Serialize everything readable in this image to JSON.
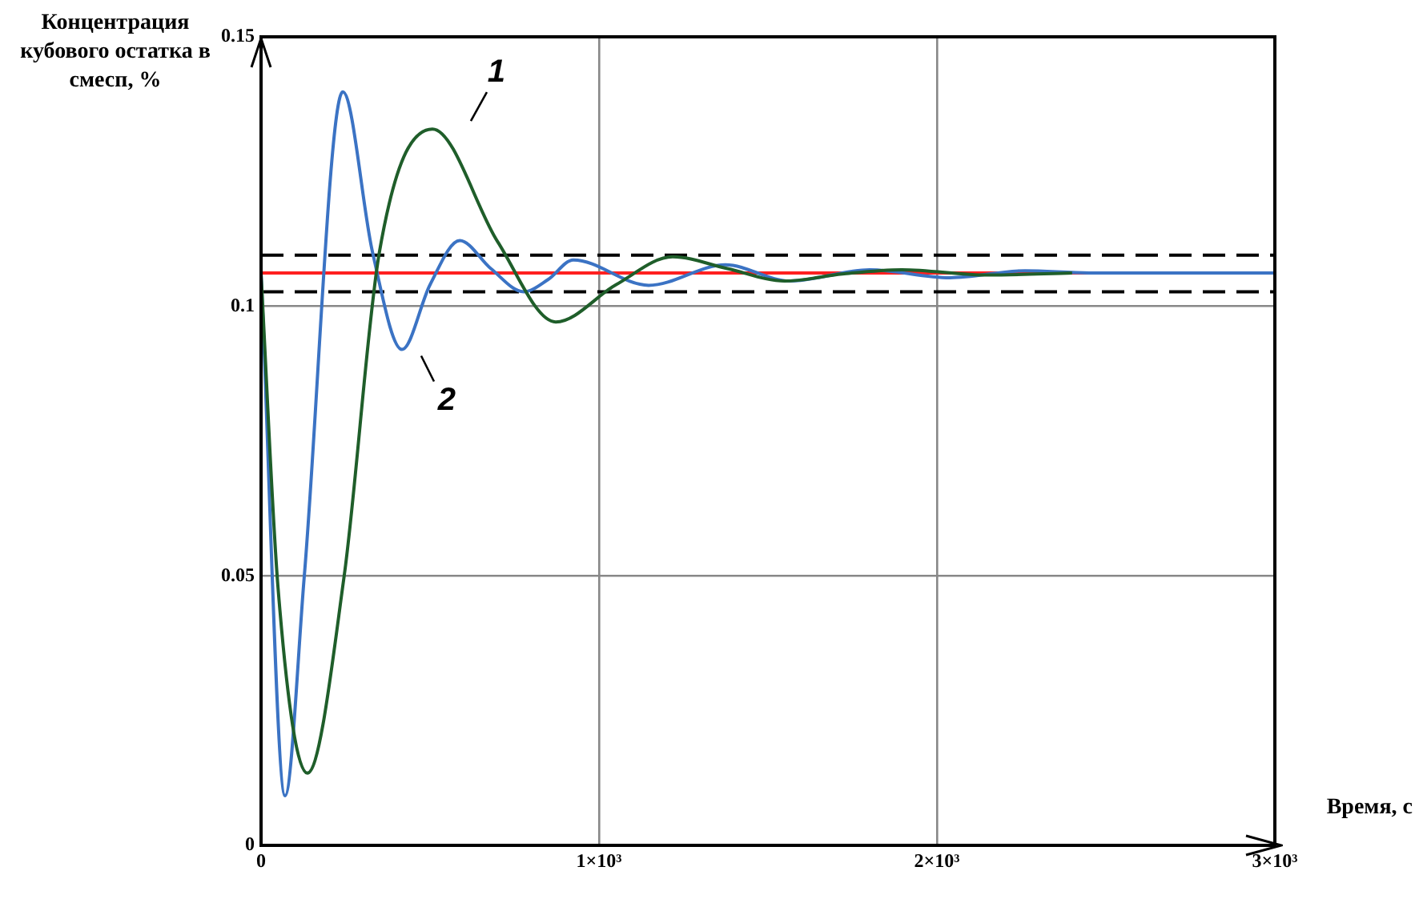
{
  "chart_data": {
    "type": "line",
    "xlabel": "Время, с",
    "ylabel": "Концентрация кубового остатка в смесп, %",
    "xlim": [
      0,
      3000
    ],
    "xticks": [
      0,
      {
        "value": 1000,
        "label": "1×10³"
      },
      {
        "value": 2000,
        "label": "2×10³"
      },
      {
        "value": 3000,
        "label": "3×10³"
      }
    ],
    "ylim": [
      0,
      0.15
    ],
    "yticks": [
      0,
      0.05,
      0.1,
      0.15
    ],
    "grid": true,
    "legend": false,
    "marker": "none",
    "line_style": "solid",
    "series": [
      {
        "name": "1",
        "color": "#1f5e2a",
        "x": [
          0,
          50,
          137,
          246,
          350,
          507,
          700,
          872,
          1050,
          1218,
          1380,
          1550,
          1720,
          1896,
          2150,
          2400
        ],
        "values": [
          0.106,
          0.048,
          0.0134,
          0.05,
          0.11,
          0.1329,
          0.112,
          0.0971,
          0.104,
          0.1092,
          0.107,
          0.1047,
          0.106,
          0.1068,
          0.1058,
          0.1062
        ]
      },
      {
        "name": "2",
        "color": "#3b73c4",
        "x": [
          0,
          71,
          128,
          242,
          330,
          417,
          500,
          588,
          680,
          777,
          850,
          924,
          1147,
          1374,
          1564,
          1801,
          2038,
          2261,
          2450,
          3000
        ],
        "values": [
          0.106,
          0.0092,
          0.05,
          0.1398,
          0.11,
          0.092,
          0.104,
          0.1122,
          0.107,
          0.1027,
          0.105,
          0.1086,
          0.1039,
          0.1077,
          0.1047,
          0.1068,
          0.1053,
          0.1066,
          0.1062,
          0.1062
        ]
      }
    ],
    "ref_lines": [
      {
        "axis": "y",
        "value": 0.1062,
        "color": "#ff2020",
        "line_style": "solid"
      },
      {
        "axis": "y",
        "value": 0.1095,
        "color": "#000000",
        "line_style": "dashed"
      },
      {
        "axis": "y",
        "value": 0.1027,
        "color": "#000000",
        "line_style": "dashed"
      }
    ]
  }
}
